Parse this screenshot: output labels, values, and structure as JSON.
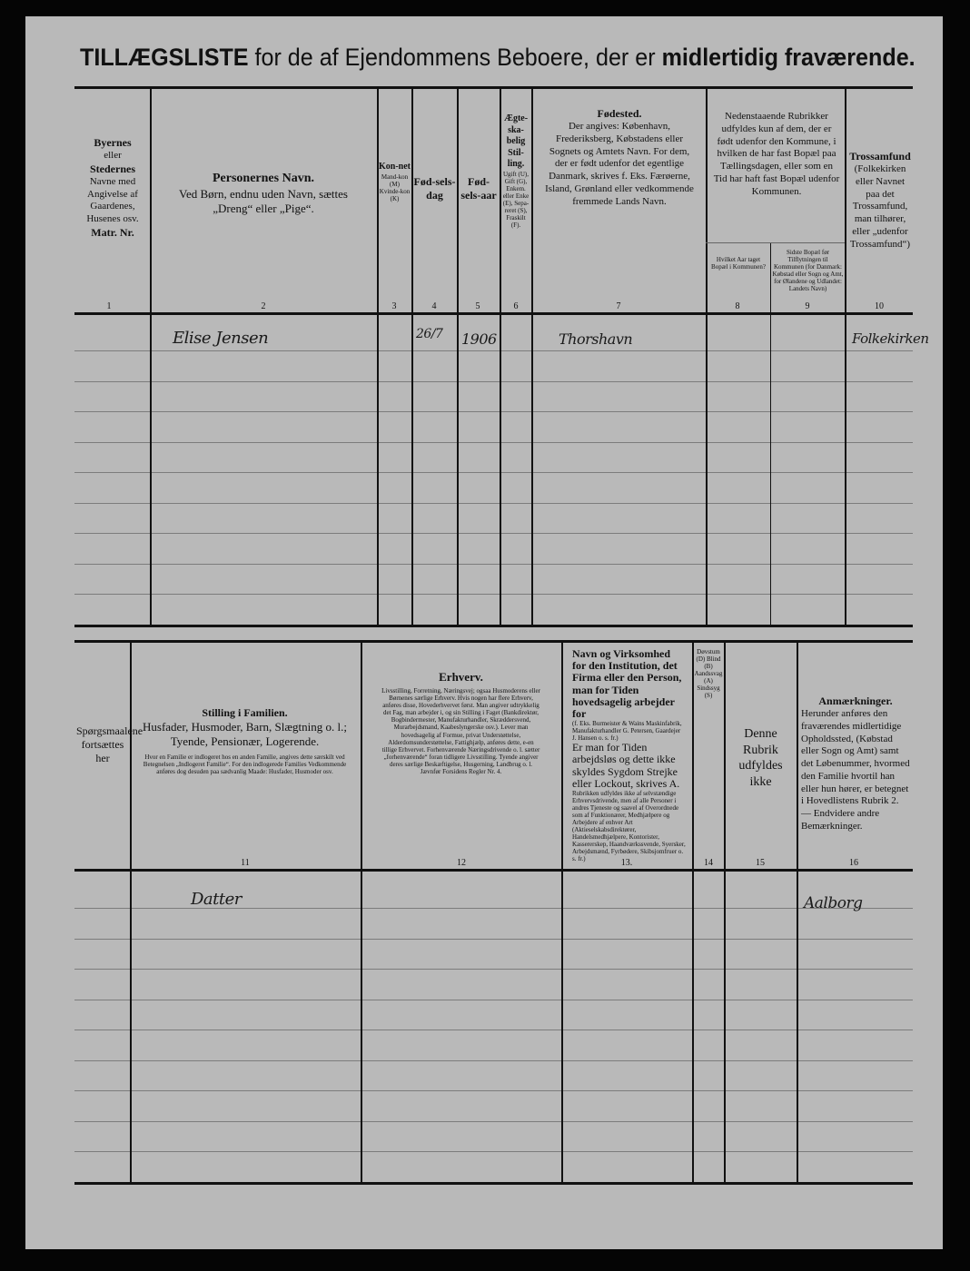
{
  "title": {
    "part1": "TILLÆGSLISTE",
    "part2": " for de af Ejendommens Beboere, der er ",
    "part3": "midlertidig fraværende."
  },
  "upper_headers": [
    {
      "num": "1",
      "heading": "Byernes",
      "text": "eller",
      "heading2": "Stedernes",
      "text2": "Navne med Angivelse af Gaardenes, Husenes osv.",
      "heading3": "Matr. Nr."
    },
    {
      "num": "2",
      "heading": "Personernes Navn.",
      "text": "Ved Børn, endnu uden Navn, sættes „Dreng“ eller „Pige“."
    },
    {
      "num": "3",
      "heading": "Kon-net",
      "text": "Mand-kon (M) Kvinde-kon (K)"
    },
    {
      "num": "4",
      "heading": "Fød-sels-dag"
    },
    {
      "num": "5",
      "heading": "Fød-sels-aar"
    },
    {
      "num": "6",
      "heading": "Ægte-ska-belig Stil-ling.",
      "text": "Ugift (U), Gift (G), Enkem. eller Enke (E), Sepa-reret (S), Fraskilt (F)."
    },
    {
      "num": "7",
      "heading": "Fødested.",
      "text": "Der angives: København, Frederiksberg, Købstadens eller Sognets og Amtets Navn. For dem, der er født udenfor det egentlige Danmark, skrives f. Eks. Færøerne, Island, Grønland eller vedkommende fremmede Lands Navn."
    },
    {
      "num": "8-9",
      "text": "Nedenstaaende Rubrikker udfyldes kun af dem, der er født udenfor den Kommune, i hvilken de har fast Bopæl paa Tællingsdagen, eller som en Tid har haft fast Bopæl udenfor Kommunen."
    },
    {
      "num": "8",
      "text": "Hvilket Aar taget Bopæl i Kommunen?"
    },
    {
      "num": "9",
      "text": "Sidste Bopæl før Tilflytningen til Kommunen (for Danmark: Købstad eller Sogn og Amt, for Ølandene og Udlandet: Landets Navn)"
    },
    {
      "num": "10",
      "heading": "Trossamfund",
      "text": "(Folkekirken eller Navnet paa det Trossamfund, man tilhører, eller „udenfor Trossamfund“)"
    }
  ],
  "lower_headers": [
    {
      "num": "",
      "text": "Spørgsmaalene fortsættes her"
    },
    {
      "num": "11",
      "heading": "Stilling i Familien.",
      "text": "Husfader, Husmoder, Barn, Slægtning o. l.; Tyende, Pensionær, Logerende.",
      "small": "Hvor en Familie er indlogeret hos en anden Familie, angives dette særskilt ved Betegnelsen „Indlogeret Familie“. For den indlogerede Families Vedkommende anføres dog desuden paa sædvanlig Maade: Husfader, Husmoder osv."
    },
    {
      "num": "12",
      "heading": "Erhverv.",
      "small": "Livsstilling, Forretning, Næringsvej; ogsaa Husmoderens eller Børnenes særlige Erhverv. Hvis nogen har flere Erhverv, anføres disse, Hovederhvervet først. Man angiver udtrykkelig det Fag, man arbejder i, og sin Stilling i Faget (Bankdirektør, Bogbindermester, Manufakturhandler, Skræddersvend, Murarbejdsmand, Kaabeslyngerske osv.). Lever man hovedsagelig af Formue, privat Understøttelse, Alderdomsunderstøttelse, Fattighjælp, anføres dette, e-en tillige Erhvervet. Forhenværende Næringsdrivende o. l. sætter „forhenværende“ foran tidligere Livsstilling. Tyende angiver deres særlige Beskæftigelse, Husgerning, Landbrug o. l. Jævnfør Forsidens Regler Nr. 4."
    },
    {
      "num": "13.",
      "heading": "Navn og Virksomhed for den Institution, det Firma eller den Person, man for Tiden hovedsagelig arbejder for",
      "small": "(f. Eks. Burmeister & Wains Maskinfabrik, Manufakturhandler G. Petersen, Gaardejer J. Hansen o. s. fr.)",
      "text": "Er man for Tiden arbejdsløs og dette ikke skyldes Sygdom Strejke eller Lockout, skrives A.",
      "small2": "Rubrikken udfyldes ikke af selvstændige Erhvervsdrivende, men af alle Personer i andres Tjeneste og saavel af Overordnede som af Funktionærer, Medhjælpere og Arbejdere af enhver Art (Aktieselskabsdirektører, Handelsmedhjælpere, Kontorister, Kassererskер, Haandværkssvende, Syersker, Arbejdsmænd, Fyrbødere, Skibsjomfruer o. s. fr.)"
    },
    {
      "num": "14",
      "small": "Døvstum (D) Blind (B) Aandssvag (A) Sindssyg (S)"
    },
    {
      "num": "15",
      "text": "Denne Rubrik udfyldes ikke"
    },
    {
      "num": "16",
      "heading": "Anmærkninger.",
      "text": "Herunder anføres den fraværendes midlertidige Opholdssted, (Købstad eller Sogn og Amt) samt det Løbenummer, hvormed den Familie hvortil han eller hun hører, er betegnet i Hovedlistens Rubrik 2. — Endvidere andre Bemærkninger."
    }
  ],
  "entries": {
    "name": "Elise Jensen",
    "birth_day": "26/7",
    "birth_year": "1906",
    "birthplace": "Thorshavn",
    "religion": "Folkekirken",
    "family_position": "Datter",
    "remarks": "Aalborg"
  }
}
